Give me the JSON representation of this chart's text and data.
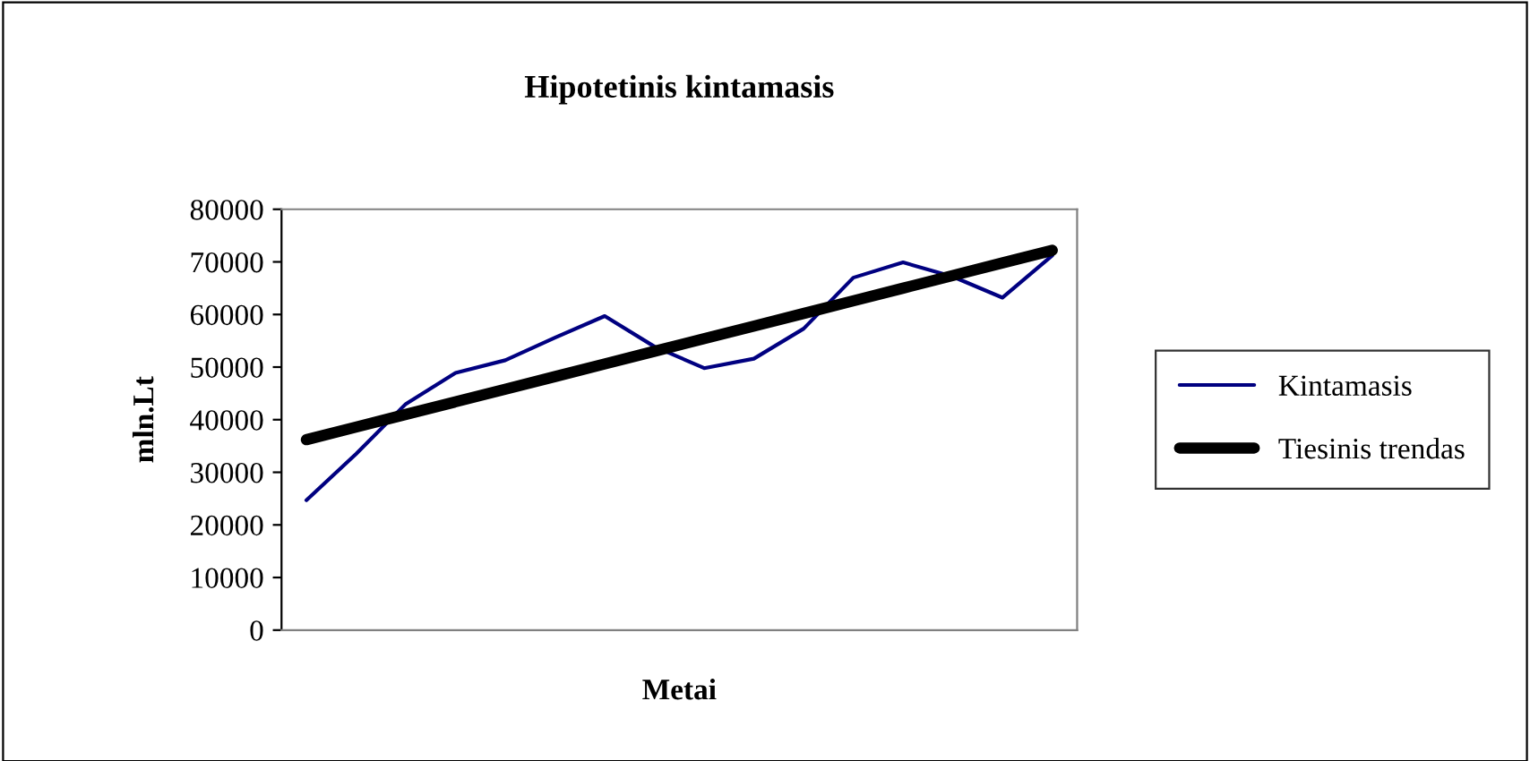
{
  "chart_data": {
    "type": "line",
    "title": "Hipotetinis kintamasis",
    "xlabel": "Metai",
    "ylabel": "mln.Lt",
    "categories": [
      null,
      null,
      null,
      null,
      null,
      null,
      null,
      null,
      null,
      null,
      null,
      null,
      null,
      null,
      null,
      null
    ],
    "series": [
      {
        "name": "Kintamasis",
        "color": "#000080",
        "values": [
          24700,
          33500,
          43000,
          48900,
          51300,
          55600,
          59700,
          53900,
          49800,
          51600,
          57300,
          67000,
          69900,
          67200,
          63200,
          71200
        ]
      },
      {
        "name": "Tiesinis trendas",
        "type": "line",
        "color": "#000000",
        "values": [
          36200,
          38600,
          41000,
          43400,
          45800,
          48200,
          50600,
          53000,
          55400,
          57800,
          60200,
          62600,
          65000,
          67400,
          69800,
          72200
        ]
      }
    ],
    "ylim": [
      0,
      80000
    ],
    "yticks": [
      0,
      10000,
      20000,
      30000,
      40000,
      50000,
      60000,
      70000,
      80000
    ],
    "grid": false,
    "legend": "right",
    "marker": "none"
  }
}
